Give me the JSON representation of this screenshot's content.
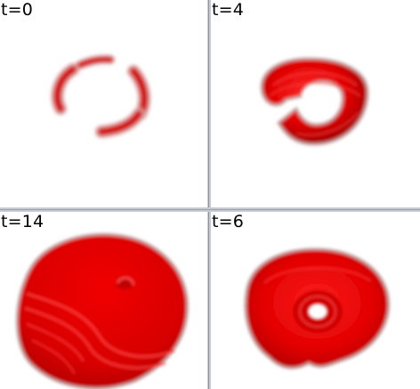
{
  "panels": [
    {
      "label": "t=0"
    },
    {
      "label": "t=4"
    },
    {
      "label": "t=14"
    },
    {
      "label": "t=6"
    }
  ],
  "colors": {
    "blob_main": "#e00000",
    "blob_dark": "#b00000",
    "blob_light": "#ff3030",
    "divider": "#c8ccd2"
  }
}
